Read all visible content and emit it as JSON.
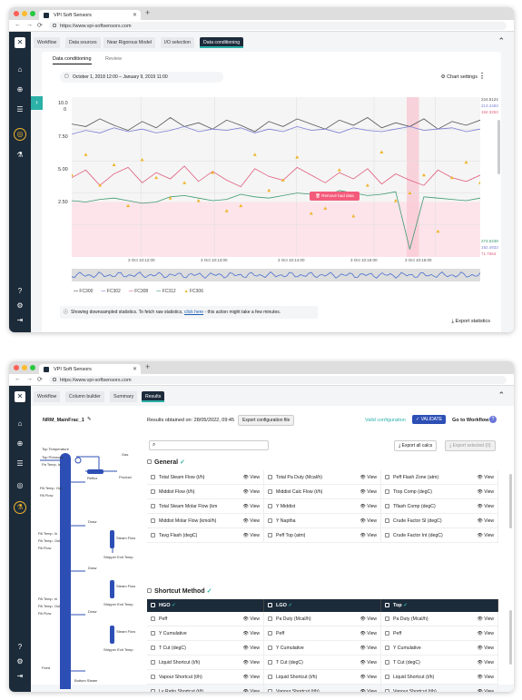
{
  "browser": {
    "tab_title": "VPI Soft Sensors",
    "url": "https://www.vpi-softsensors.com",
    "colors": {
      "close": "#ff5f57",
      "min": "#febc2e",
      "max": "#28c840"
    }
  },
  "window1": {
    "tabs": [
      {
        "label": "Workflow"
      },
      {
        "label": "Data sources"
      },
      {
        "label": "Near Rigorous Model"
      },
      {
        "label": "I/O selection"
      },
      {
        "label": "Data conditioning"
      }
    ],
    "subtabs": [
      "Data conditioning",
      "Review"
    ],
    "date_range": "October 1, 2018 12:00 – January 9, 2019 11:00",
    "chart_settings": "Chart settings",
    "remove_bad_data": "Remove bad data",
    "info_text_a": "Showing downsampled statistics. To fetch raw statistics,",
    "info_link": "click here",
    "info_text_b": "- this action might take a few minutes.",
    "export_label": "Export statistics",
    "accent": "#2bb1a8"
  },
  "chart_data": {
    "type": "line",
    "yticks": [
      "10.0",
      "7.50",
      "5.00",
      "2.50"
    ],
    "y_tick_extra": "0",
    "xticks": [
      "3 Oct 10:12:00",
      "3 Oct 10:13:00",
      "3 Oct 10:14:00",
      "3 Oct 10:15:00",
      "3 Oct 10:16:00"
    ],
    "right_axis_top": [
      "224.5124",
      "213.2493",
      "194.3253"
    ],
    "right_axis_bottom": [
      "274.5438",
      "192.4933",
      "71.7664"
    ],
    "series": [
      {
        "name": "FC300",
        "color": "#555555",
        "values": [
          10.4,
          10.2,
          10.8,
          10.3,
          9.9,
          10.6,
          10.1,
          10.9,
          10.2,
          10.5,
          10.0,
          10.7,
          10.3,
          9.8,
          10.6,
          10.2,
          10.8,
          10.4,
          10.0,
          10.7,
          10.3,
          10.9,
          10.1,
          10.5,
          10.2,
          10.8,
          10.0,
          10.6,
          10.3,
          10.7
        ]
      },
      {
        "name": "FC302",
        "color": "#7b7fd4",
        "values": [
          9.6,
          9.9,
          9.7,
          10.1,
          9.8,
          10.0,
          9.7,
          9.9,
          10.2,
          9.8,
          10.0,
          9.9,
          10.1,
          9.7,
          10.0,
          9.8,
          10.2,
          9.9,
          10.0,
          9.7,
          10.1,
          9.9,
          9.8,
          10.0,
          10.2,
          9.9,
          10.0,
          10.1,
          9.8,
          10.0
        ]
      },
      {
        "name": "FC308",
        "color": "#e0607e",
        "values": [
          6.2,
          6.8,
          5.6,
          6.5,
          7.0,
          5.8,
          6.6,
          6.1,
          7.1,
          5.9,
          6.7,
          6.0,
          5.5,
          6.9,
          6.3,
          6.0,
          7.0,
          6.4,
          5.8,
          6.6,
          6.1,
          6.9,
          5.7,
          6.5,
          6.0,
          5.6,
          6.8,
          6.2,
          5.9,
          6.4
        ]
      },
      {
        "name": "FC312",
        "color": "#3d9970",
        "values": [
          4.4,
          4.3,
          4.5,
          4.6,
          4.4,
          4.2,
          4.3,
          4.7,
          4.8,
          4.6,
          4.4,
          4.5,
          4.9,
          4.7,
          4.6,
          4.8,
          5.0,
          4.9,
          4.7,
          5.2,
          5.0,
          4.8,
          4.9,
          5.1,
          0.6,
          4.7,
          4.6,
          4.5,
          4.4,
          4.6
        ]
      },
      {
        "name": "FC306",
        "color": "#f0b429",
        "values": [
          6.4,
          8.0,
          5.6,
          7.2,
          4.0,
          7.6,
          6.2,
          4.6,
          5.8,
          4.4,
          6.6,
          3.6,
          4.0,
          8.0,
          5.2,
          6.0,
          7.8,
          3.4,
          3.8,
          6.8,
          3.2,
          5.6,
          8.2,
          4.4,
          5.0,
          6.4,
          2.0,
          6.2,
          7.4,
          5.8
        ]
      }
    ],
    "ylim": [
      0,
      12.5
    ],
    "highlight_x": [
      0.82,
      0.85
    ]
  },
  "window2": {
    "tabs": [
      {
        "label": "Workflow"
      },
      {
        "label": "Column builder"
      },
      {
        "label": "Summary"
      },
      {
        "label": "Results"
      }
    ],
    "model_name": "NRM_MainFrac_1",
    "results_date": "Results obtained on: 28/05/2022, 09:45",
    "export_config": "Export configuration file",
    "valid_config": "Valid configuration",
    "validate_btn": "VALIDATE",
    "go_workflow": "Go to Workflow",
    "export_all": "Export all calcs",
    "export_selected": "Export selected (0)",
    "view_label": "View",
    "general_title": "General",
    "general_items": [
      "Total Steam Flow (t/h)",
      "Total Pa Duty (Mcal/h)",
      "Peff Flash Zone (atm)",
      "Middist Flow (t/h)",
      "Middist Calc Flow (t/h)",
      "Ttop Comp (degC)",
      "Total Steam Molar Flow (km",
      "Y Middist",
      "Tflash Comp (degC)",
      "Middist Molar Flow (kmol/h)",
      "Y Naptha",
      "Crude Factor Sl (degC)",
      "Tavg Flash (degC)",
      "Peff Top (atm)",
      "Crude Factor Int (degC)"
    ],
    "shortcut_title": "Shortcut Method",
    "shortcut_cols": [
      {
        "title": "HGO",
        "items": [
          "Peff",
          "Y Cumulative",
          "T Cut (degC)",
          "Liquid Shortcut (t/h)",
          "Vapour Shortcut (t/h)",
          "Lv Ratio Shortcut (t/t)"
        ]
      },
      {
        "title": "LGO",
        "items": [
          "Pa Duty (Mcal/h)",
          "Peff",
          "Y Cumulative",
          "T Cut (degC)",
          "Liquid Shortcut (t/h)",
          "Vapour Shortcut (t/h)",
          "Lv Ratio Shortcut (t/t)"
        ]
      },
      {
        "title": "Top",
        "items": [
          "Pa Duty (Mcal/h)",
          "Peff",
          "Y Cumulative",
          "T Cut (degC)",
          "Liquid Shortcut (t/h)",
          "Vapour Shortcut (t/h)",
          "Lv Ratio Shortcut (t/t)"
        ]
      }
    ],
    "diagram_labels": {
      "top_temp": "Top Temperature",
      "top_pressure": "Top Pressure",
      "pa_temp": "Pa Temp. In",
      "gas": "Gas",
      "product": "Product",
      "reflux": "Reflux",
      "pa_out_1": "PA Temp. Out",
      "pa_flow_1": "PA Flow",
      "pa_in_2": "PA Temp. In",
      "pa_out_2": "PA Temp. Out",
      "pa_flow_2": "PA Flow",
      "pa_in_3": "PA Temp. In",
      "pa_out_3": "PA Temp. Out",
      "pa_flow_3": "PA Flow",
      "steam_flow_1": "Steam Flow",
      "draw_1": "Draw",
      "stripper_temp_1": "Stripper Exit Temp",
      "steam_flow_2": "Steam Flow",
      "draw_2": "Draw",
      "stripper_temp_2": "Stripper Exit Temp",
      "steam_flow_3": "Steam Flow",
      "draw_3": "Draw",
      "stripper_temp_3": "Stripper Exit Temp",
      "feed": "Feed",
      "bottom_steam": "Bottom Steam"
    }
  }
}
